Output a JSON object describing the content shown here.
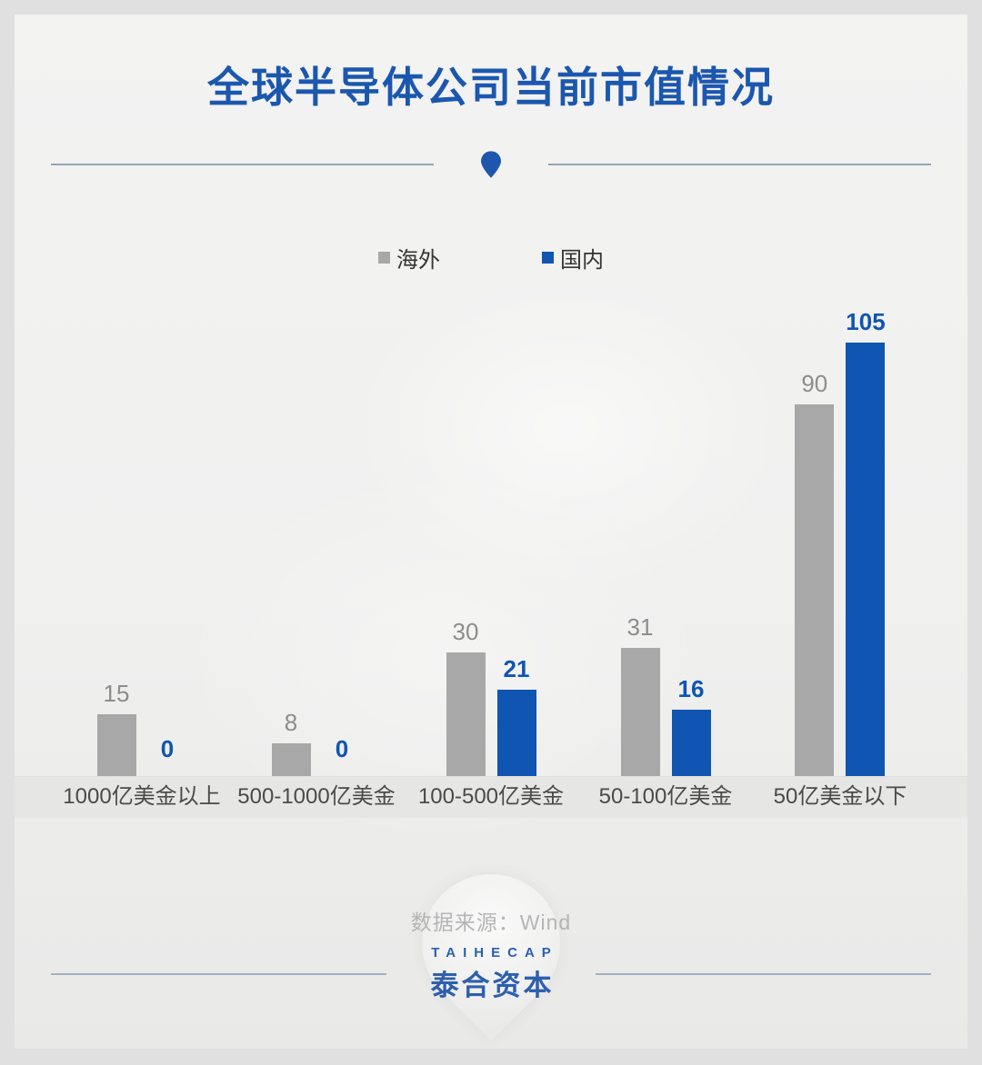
{
  "title": "全球半导体公司当前市值情况",
  "chart_data": {
    "type": "bar",
    "title": "全球半导体公司当前市值情况",
    "categories": [
      "1000亿美金以上",
      "500-1000亿美金",
      "100-500亿美金",
      "50-100亿美金",
      "50亿美金以下"
    ],
    "series": [
      {
        "name": "海外",
        "color": "#a8a8a8",
        "label_color": "#8d8d8d",
        "label_weight": "400",
        "values": [
          15,
          8,
          30,
          31,
          90
        ]
      },
      {
        "name": "国内",
        "color": "#0f55b1",
        "label_color": "#0f55b1",
        "label_weight": "700",
        "values": [
          0,
          0,
          21,
          16,
          105
        ]
      }
    ],
    "xlabel": "",
    "ylabel": "",
    "ylim": [
      0,
      105
    ],
    "grid": false,
    "legend_position": "top-center",
    "value_labels": true
  },
  "footer": {
    "source": "数据来源：Wind",
    "logo_en": "TAIHECAP",
    "logo_cn": "泰合资本"
  },
  "colors": {
    "title_blue": "#1b57ae",
    "bar_gray": "#a8a8a8",
    "bar_blue": "#0f55b1",
    "divider_line": "#93a5b8",
    "footer_line": "#a3b2c4",
    "band_bg": "#e6e6e5",
    "source_text": "#b5b5b5"
  }
}
